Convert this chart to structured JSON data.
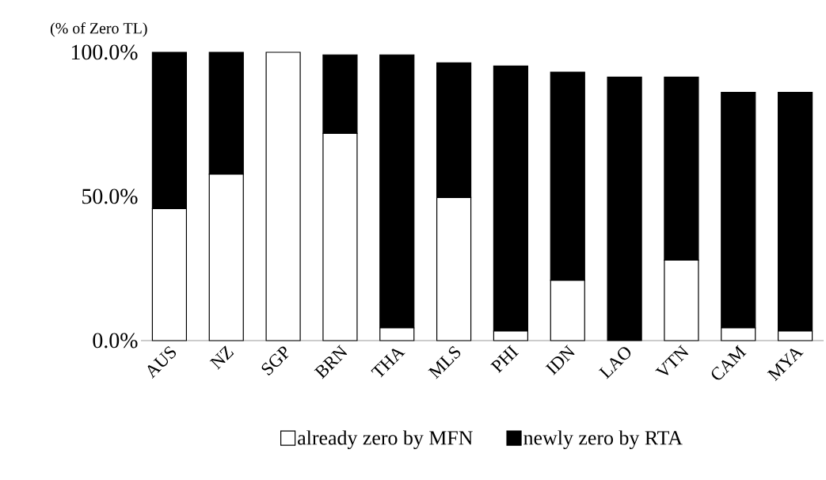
{
  "chart_data": {
    "type": "bar",
    "stacked": true,
    "ylabel": "(% of Zero TL)",
    "categories": [
      "AUS",
      "NZ",
      "SGP",
      "BRN",
      "THA",
      "MLS",
      "PHI",
      "IDN",
      "LAO",
      "VTN",
      "CAM",
      "MYA"
    ],
    "series": [
      {
        "name": "already zero by MFN",
        "color": "#ffffff",
        "values": [
          45.8,
          57.7,
          100,
          71.9,
          4.4,
          49.6,
          3.3,
          20.9,
          0,
          27.9,
          4.4,
          3.3
        ]
      },
      {
        "name": "newly zero by RTA",
        "color": "#000000",
        "values": [
          54.2,
          42.3,
          0,
          27.2,
          94.7,
          46.7,
          91.9,
          72.2,
          91.4,
          63.5,
          81.7,
          82.8
        ]
      }
    ],
    "ylim": [
      0,
      100
    ],
    "yticks": [
      {
        "value": 0,
        "label": "0.0%"
      },
      {
        "value": 50,
        "label": "50.0%"
      },
      {
        "value": 100,
        "label": "100.0%"
      }
    ],
    "legend": "bottom"
  }
}
